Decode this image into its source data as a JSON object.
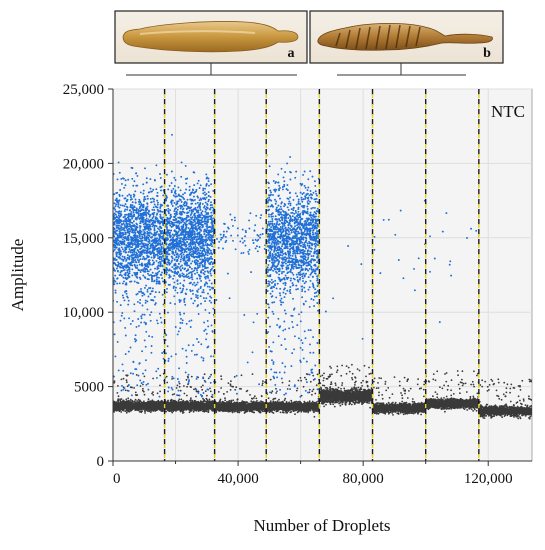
{
  "figure": {
    "panel_a_label": "a",
    "panel_b_label": "b"
  },
  "chart_data": {
    "type": "scatter",
    "title": "",
    "xlabel": "Number of Droplets",
    "ylabel": "Amplitude",
    "xlim": [
      0,
      134000
    ],
    "ylim": [
      0,
      25000
    ],
    "x_ticks": [
      0,
      40000,
      80000,
      120000
    ],
    "x_tick_labels": [
      "0",
      "40,000",
      "80,000",
      "120,000"
    ],
    "x_minor_ticks": [
      20000,
      60000,
      100000
    ],
    "y_ticks": [
      0,
      5000,
      10000,
      15000,
      20000,
      25000
    ],
    "y_tick_labels": [
      "0",
      "5000",
      "10,000",
      "15,000",
      "20,000",
      "25,000"
    ],
    "grid": true,
    "annotation": "NTC",
    "well_boundaries": [
      16500,
      32500,
      49000,
      66000,
      83000,
      100000,
      117000
    ],
    "series": [
      {
        "role": "positive",
        "color": "#1f6fd6",
        "clusters": [
          {
            "x_range": [
              0,
              16500
            ],
            "center": 15000,
            "spread": 1700,
            "count": 1400,
            "tail_points": 140
          },
          {
            "x_range": [
              16500,
              32500
            ],
            "center": 15000,
            "spread": 1700,
            "count": 1400,
            "tail_points": 140
          },
          {
            "x_range": [
              32500,
              49000
            ],
            "center": 15000,
            "spread": 700,
            "count": 70,
            "tail_points": 12
          },
          {
            "x_range": [
              49000,
              66000
            ],
            "center": 15000,
            "spread": 1700,
            "count": 1400,
            "tail_points": 140
          },
          {
            "x_range": [
              66000,
              83000
            ],
            "center": 10500,
            "spread": 3000,
            "count": 5,
            "tail_points": 0
          },
          {
            "x_range": [
              83000,
              100000
            ],
            "center": 14500,
            "spread": 1800,
            "count": 14,
            "tail_points": 0
          },
          {
            "x_range": [
              100000,
              117000
            ],
            "center": 14000,
            "spread": 2500,
            "count": 12,
            "tail_points": 0
          }
        ]
      },
      {
        "role": "negative",
        "color": "#3a3a3a",
        "clusters": [
          {
            "x_range": [
              0,
              16500
            ],
            "center": 3700,
            "spread": 150,
            "count": 1500
          },
          {
            "x_range": [
              16500,
              32500
            ],
            "center": 3700,
            "spread": 150,
            "count": 1500
          },
          {
            "x_range": [
              32500,
              49000
            ],
            "center": 3650,
            "spread": 150,
            "count": 1500
          },
          {
            "x_range": [
              49000,
              66000
            ],
            "center": 3650,
            "spread": 150,
            "count": 1500
          },
          {
            "x_range": [
              66000,
              83000
            ],
            "center": 4350,
            "spread": 220,
            "count": 1700
          },
          {
            "x_range": [
              83000,
              100000
            ],
            "center": 3550,
            "spread": 150,
            "count": 1500
          },
          {
            "x_range": [
              100000,
              117000
            ],
            "center": 3850,
            "spread": 150,
            "count": 1500
          },
          {
            "x_range": [
              117000,
              134000
            ],
            "center": 3350,
            "spread": 150,
            "count": 1500
          }
        ]
      }
    ]
  }
}
